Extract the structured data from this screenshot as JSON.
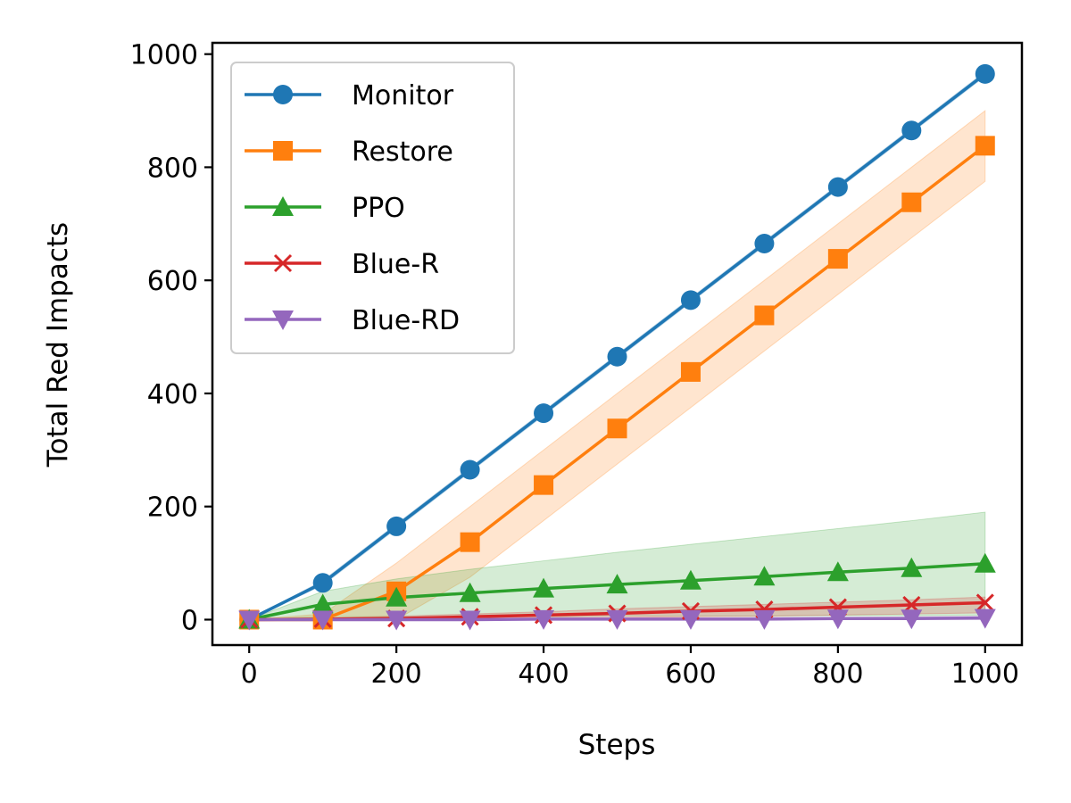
{
  "chart_data": {
    "type": "line",
    "title": "",
    "xlabel": "Steps",
    "ylabel": "Total Red Impacts",
    "xlim": [
      -50,
      1050
    ],
    "ylim": [
      -45,
      1020
    ],
    "xticks": [
      0,
      200,
      400,
      600,
      800,
      1000
    ],
    "yticks": [
      0,
      200,
      400,
      600,
      800,
      1000
    ],
    "grid": false,
    "legend_position": "upper-left",
    "x": [
      0,
      100,
      200,
      300,
      400,
      500,
      600,
      700,
      800,
      900,
      1000
    ],
    "series": [
      {
        "name": "Monitor",
        "color": "#1f77b4",
        "marker": "circle",
        "values": [
          0,
          65,
          165,
          265,
          365,
          465,
          565,
          665,
          765,
          865,
          965
        ],
        "lower": [
          0,
          61,
          161,
          261,
          361,
          461,
          561,
          661,
          761,
          861,
          961
        ],
        "upper": [
          0,
          69,
          169,
          269,
          369,
          469,
          569,
          669,
          769,
          869,
          969
        ]
      },
      {
        "name": "Restore",
        "color": "#ff7f0e",
        "marker": "square",
        "values": [
          0,
          0,
          50,
          137,
          238,
          338,
          438,
          538,
          638,
          738,
          838
        ],
        "lower": [
          0,
          0,
          0,
          75,
          175,
          275,
          375,
          475,
          575,
          675,
          775
        ],
        "upper": [
          0,
          10,
          100,
          200,
          300,
          400,
          500,
          600,
          700,
          800,
          900
        ]
      },
      {
        "name": "PPO",
        "color": "#2ca02c",
        "marker": "triangle-up",
        "values": [
          0,
          27,
          39,
          47,
          55,
          62,
          69,
          76,
          84,
          91,
          99
        ],
        "lower": [
          0,
          5,
          5,
          5,
          5,
          6,
          6,
          6,
          7,
          7,
          8
        ],
        "upper": [
          0,
          50,
          72,
          89,
          104,
          119,
          133,
          147,
          161,
          175,
          190
        ]
      },
      {
        "name": "Blue-R",
        "color": "#d62728",
        "marker": "x",
        "values": [
          0,
          1,
          2,
          5,
          8,
          11,
          15,
          18,
          22,
          26,
          30
        ],
        "lower": [
          0,
          0,
          0,
          1,
          2,
          3,
          5,
          6,
          8,
          10,
          12
        ],
        "upper": [
          0,
          3,
          6,
          10,
          14,
          19,
          23,
          27,
          31,
          35,
          40
        ]
      },
      {
        "name": "Blue-RD",
        "color": "#9467bd",
        "marker": "triangle-down",
        "values": [
          0,
          0,
          0,
          0,
          1,
          1,
          1,
          1,
          2,
          2,
          3
        ],
        "lower": [
          0,
          0,
          0,
          0,
          0,
          0,
          0,
          0,
          0,
          0,
          0
        ],
        "upper": [
          0,
          1,
          1,
          2,
          2,
          3,
          3,
          4,
          4,
          5,
          6
        ]
      }
    ]
  }
}
